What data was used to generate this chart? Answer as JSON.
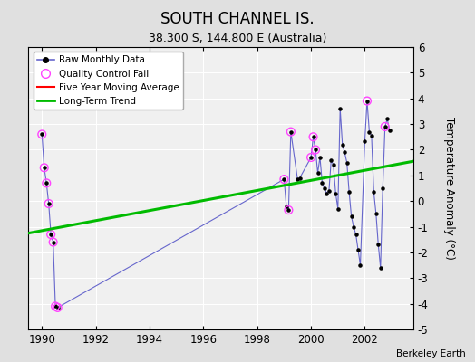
{
  "title": "SOUTH CHANNEL IS.",
  "subtitle": "38.300 S, 144.800 E (Australia)",
  "ylabel": "Temperature Anomaly (°C)",
  "credit": "Berkeley Earth",
  "xlim": [
    1989.5,
    2003.8
  ],
  "ylim": [
    -5,
    6
  ],
  "yticks": [
    -5,
    -4,
    -3,
    -2,
    -1,
    0,
    1,
    2,
    3,
    4,
    5,
    6
  ],
  "xticks": [
    1990,
    1992,
    1994,
    1996,
    1998,
    2000,
    2002
  ],
  "bg_color": "#e0e0e0",
  "plot_bg_color": "#f0f0f0",
  "raw_data": [
    [
      1990.0,
      2.6
    ],
    [
      1990.083,
      1.3
    ],
    [
      1990.167,
      0.7
    ],
    [
      1990.25,
      -0.1
    ],
    [
      1990.333,
      -1.3
    ],
    [
      1990.417,
      -1.6
    ],
    [
      1990.5,
      -4.1
    ],
    [
      1990.583,
      -4.15
    ],
    [
      1999.0,
      0.85
    ],
    [
      1999.083,
      -0.2
    ],
    [
      1999.167,
      -0.35
    ],
    [
      1999.25,
      2.7
    ],
    [
      1999.5,
      0.85
    ],
    [
      1999.583,
      0.9
    ],
    [
      2000.0,
      1.7
    ],
    [
      2000.083,
      2.5
    ],
    [
      2000.167,
      2.0
    ],
    [
      2000.25,
      1.1
    ],
    [
      2000.333,
      1.7
    ],
    [
      2000.417,
      0.7
    ],
    [
      2000.5,
      0.5
    ],
    [
      2000.583,
      0.3
    ],
    [
      2000.667,
      0.4
    ],
    [
      2000.75,
      1.6
    ],
    [
      2000.833,
      1.4
    ],
    [
      2000.917,
      0.3
    ],
    [
      2001.0,
      -0.3
    ],
    [
      2001.083,
      3.6
    ],
    [
      2001.167,
      2.2
    ],
    [
      2001.25,
      1.9
    ],
    [
      2001.333,
      1.5
    ],
    [
      2001.417,
      0.35
    ],
    [
      2001.5,
      -0.6
    ],
    [
      2001.583,
      -1.0
    ],
    [
      2001.667,
      -1.3
    ],
    [
      2001.75,
      -1.9
    ],
    [
      2001.833,
      -2.5
    ],
    [
      2002.0,
      2.35
    ],
    [
      2002.083,
      3.9
    ],
    [
      2002.167,
      2.7
    ],
    [
      2002.25,
      2.55
    ],
    [
      2002.333,
      0.35
    ],
    [
      2002.417,
      -0.5
    ],
    [
      2002.5,
      -1.7
    ],
    [
      2002.583,
      -2.6
    ],
    [
      2002.667,
      0.5
    ],
    [
      2002.75,
      2.9
    ],
    [
      2002.833,
      3.2
    ],
    [
      2002.917,
      2.75
    ]
  ],
  "qc_fail": [
    [
      1990.0,
      2.6
    ],
    [
      1990.083,
      1.3
    ],
    [
      1990.167,
      0.7
    ],
    [
      1990.25,
      -0.1
    ],
    [
      1990.333,
      -1.3
    ],
    [
      1990.417,
      -1.6
    ],
    [
      1990.5,
      -4.1
    ],
    [
      1990.583,
      -4.15
    ],
    [
      1999.25,
      2.7
    ],
    [
      1999.0,
      0.85
    ],
    [
      1999.167,
      -0.35
    ],
    [
      2000.0,
      1.7
    ],
    [
      2000.083,
      2.5
    ],
    [
      2000.167,
      2.0
    ],
    [
      2002.083,
      3.9
    ],
    [
      2002.75,
      2.9
    ]
  ],
  "trend_x": [
    1989.5,
    2003.8
  ],
  "trend_y": [
    -1.25,
    1.55
  ],
  "line_color": "#6666cc",
  "dot_color": "#000000",
  "qc_color": "#ff44ff",
  "trend_color": "#00bb00",
  "moving_avg_color": "#ff0000"
}
